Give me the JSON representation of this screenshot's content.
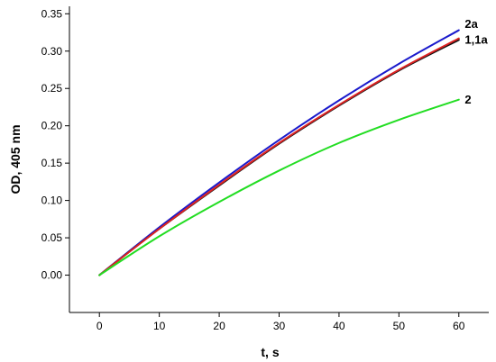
{
  "chart_data": {
    "type": "line",
    "title": "",
    "xlabel": "t, s",
    "ylabel": "OD, 405 nm",
    "xlim": [
      -5,
      65
    ],
    "ylim": [
      -0.05,
      0.36
    ],
    "x_ticks": [
      0,
      10,
      20,
      30,
      40,
      50,
      60
    ],
    "y_ticks": [
      0.0,
      0.05,
      0.1,
      0.15,
      0.2,
      0.25,
      0.3,
      0.35
    ],
    "x_tick_labels": [
      "0",
      "10",
      "20",
      "30",
      "40",
      "50",
      "60"
    ],
    "y_tick_labels": [
      "0.00",
      "0.05",
      "0.10",
      "0.15",
      "0.20",
      "0.25",
      "0.30",
      "0.35"
    ],
    "grid": false,
    "x": [
      0,
      10,
      20,
      30,
      40,
      50,
      60
    ],
    "series": [
      {
        "name": "2a",
        "color": "#1a1acc",
        "values": [
          0.0,
          0.064,
          0.124,
          0.181,
          0.234,
          0.283,
          0.328
        ]
      },
      {
        "name": "1",
        "color": "#111111",
        "values": [
          0.0,
          0.062,
          0.12,
          0.176,
          0.227,
          0.274,
          0.315
        ]
      },
      {
        "name": "1a",
        "color": "#dd2222",
        "values": [
          0.0,
          0.062,
          0.121,
          0.177,
          0.228,
          0.275,
          0.317
        ]
      },
      {
        "name": "2",
        "color": "#22dd22",
        "values": [
          0.0,
          0.052,
          0.098,
          0.14,
          0.177,
          0.208,
          0.235
        ]
      }
    ],
    "annotations": [
      {
        "text": "2a",
        "x": 61,
        "y": 0.337
      },
      {
        "text": "1,1a",
        "x": 61,
        "y": 0.316
      },
      {
        "text": "2",
        "x": 61,
        "y": 0.236
      }
    ]
  }
}
